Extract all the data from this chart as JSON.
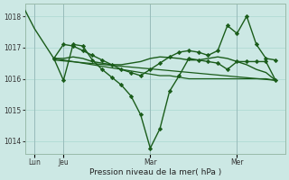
{
  "background_color": "#cce8e4",
  "line_color": "#1a5c1a",
  "xlabel": "Pression niveau de la mer( hPa )",
  "ylim": [
    1013.6,
    1018.4
  ],
  "yticks": [
    1014,
    1015,
    1016,
    1017,
    1018
  ],
  "xlim": [
    0,
    27
  ],
  "x_tick_positions": [
    1,
    4,
    13,
    22
  ],
  "x_tick_labels": [
    "Lun",
    "Jeu",
    "Mar",
    "Mer"
  ],
  "line_a": {
    "x": [
      0,
      1,
      3,
      4,
      5,
      6,
      7,
      8,
      9,
      10,
      11,
      12,
      13,
      14,
      15,
      16,
      17,
      18,
      19,
      20,
      21,
      22,
      23,
      24,
      25,
      26
    ],
    "y": [
      1018.2,
      1017.6,
      1016.65,
      1016.65,
      1016.7,
      1016.65,
      1016.55,
      1016.5,
      1016.45,
      1016.45,
      1016.5,
      1016.55,
      1016.65,
      1016.7,
      1016.68,
      1016.65,
      1016.6,
      1016.6,
      1016.65,
      1016.7,
      1016.65,
      1016.55,
      1016.45,
      1016.3,
      1016.2,
      1015.95
    ],
    "marker": false,
    "lw": 1.0
  },
  "line_b": {
    "x": [
      3,
      4,
      5,
      6,
      7,
      8,
      9,
      10,
      11,
      12,
      13,
      14,
      15,
      16,
      17,
      18,
      19,
      20,
      21,
      22,
      23,
      24,
      25,
      26
    ],
    "y": [
      1016.65,
      1015.95,
      1017.1,
      1017.05,
      1016.6,
      1016.3,
      1016.05,
      1015.8,
      1015.45,
      1014.85,
      1013.78,
      1014.4,
      1015.6,
      1016.1,
      1016.65,
      1016.6,
      1016.55,
      1016.5,
      1016.3,
      1016.55,
      1016.55,
      1016.55,
      1016.55,
      1015.95
    ],
    "marker": true,
    "lw": 1.0
  },
  "line_c": {
    "x": [
      3,
      26
    ],
    "y": [
      1016.6,
      1015.95
    ],
    "marker": false,
    "lw": 0.9
  },
  "line_d": {
    "x": [
      3,
      4,
      5,
      6,
      7,
      8,
      9,
      10,
      11,
      12,
      13,
      14,
      15,
      16,
      17,
      18,
      19,
      20,
      21,
      22,
      23,
      24,
      25,
      26
    ],
    "y": [
      1016.65,
      1016.6,
      1016.55,
      1016.5,
      1016.45,
      1016.4,
      1016.35,
      1016.3,
      1016.25,
      1016.2,
      1016.15,
      1016.1,
      1016.1,
      1016.05,
      1016.0,
      1016.0,
      1016.0,
      1016.0,
      1016.0,
      1016.0,
      1016.0,
      1016.0,
      1016.0,
      1015.95
    ],
    "marker": false,
    "lw": 0.9
  },
  "line_e": {
    "x": [
      3,
      4,
      5,
      6,
      7,
      8,
      9,
      10,
      11,
      12,
      13,
      14,
      15,
      16,
      17,
      18,
      19,
      20,
      21,
      22,
      23,
      24,
      25,
      26
    ],
    "y": [
      1016.65,
      1017.1,
      1017.05,
      1016.9,
      1016.75,
      1016.6,
      1016.45,
      1016.3,
      1016.2,
      1016.1,
      1016.3,
      1016.5,
      1016.7,
      1016.85,
      1016.9,
      1016.85,
      1016.75,
      1016.9,
      1017.7,
      1017.45,
      1018.0,
      1017.1,
      1016.65,
      1016.6
    ],
    "marker": true,
    "lw": 1.0
  }
}
